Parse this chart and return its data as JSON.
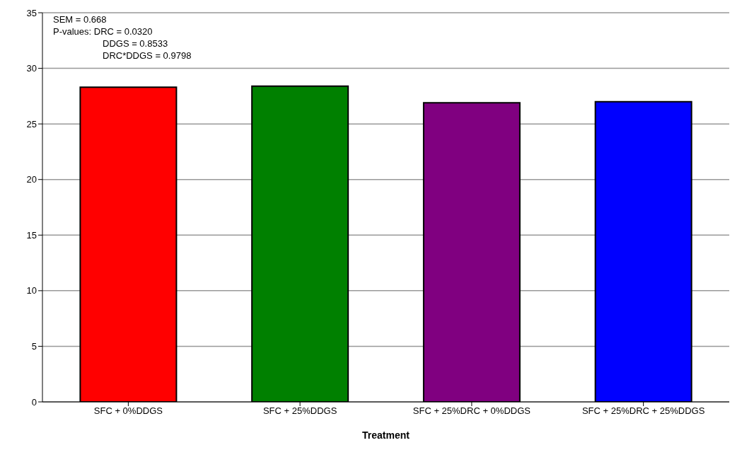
{
  "chart_data": {
    "type": "bar",
    "xlabel": "Treatment",
    "categories": [
      "SFC + 0%DDGS",
      "SFC + 25%DDGS",
      "SFC + 25%DRC + 0%DDGS",
      "SFC + 25%DRC + 25%DDGS"
    ],
    "values": [
      28.3,
      28.4,
      26.9,
      27.0
    ],
    "colors": [
      "#ff0000",
      "#008000",
      "#800080",
      "#0000ff"
    ],
    "ylim": [
      0,
      35
    ],
    "yticks": [
      0,
      5,
      10,
      15,
      20,
      25,
      30,
      35
    ],
    "grid": "y",
    "annotations": [
      "SEM = 0.668",
      "P-values: DRC = 0.0320",
      "DDGS = 0.8533",
      "DRC*DDGS = 0.9798"
    ]
  }
}
